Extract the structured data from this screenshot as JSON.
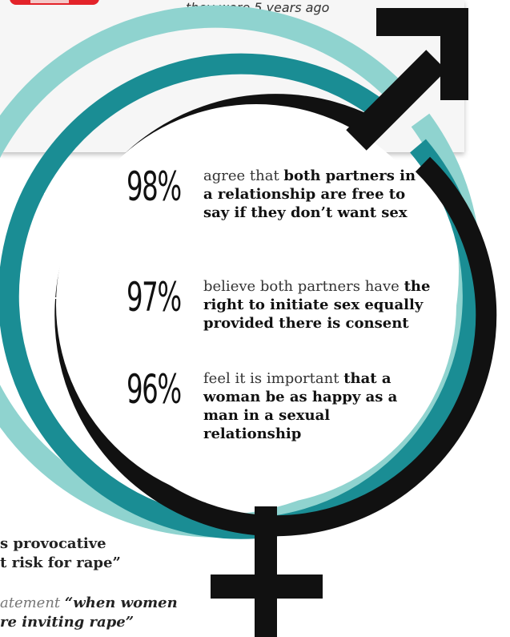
{
  "top_caption": "they were 5 years ago",
  "stats": [
    {
      "percent": "98%",
      "lead": "agree that ",
      "bold": "both partners in a relationship are free to say if they don’t want sex"
    },
    {
      "percent": "97%",
      "lead": "believe both partners have ",
      "bold": "the right to initiate sex equally provided there is consent"
    },
    {
      "percent": "96%",
      "lead": "feel it is important ",
      "bold": "that a woman be as happy as a man in a sexual relationship"
    }
  ],
  "bottom_left": {
    "line1": "s provocative",
    "line2": "t risk for rape”",
    "line3_plain": "atement ",
    "line3_bold": "“when women",
    "line4": "re inviting rape”"
  },
  "colors": {
    "outer_ring": "#8fd3cf",
    "middle_ring": "#1a8d94",
    "inner_ring": "#111111",
    "accent_red": "#e3232a"
  }
}
